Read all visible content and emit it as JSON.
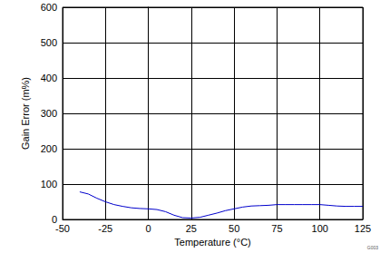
{
  "chart_data": {
    "type": "line",
    "xlabel": "Temperature (°C)",
    "ylabel": "Gain Error (m%)",
    "annotations": [
      "G003"
    ],
    "x": [
      -40,
      -35,
      -30,
      -25,
      -20,
      -15,
      -10,
      -5,
      0,
      5,
      10,
      15,
      20,
      25,
      30,
      35,
      40,
      45,
      50,
      55,
      60,
      65,
      70,
      75,
      80,
      85,
      90,
      95,
      100,
      105,
      110,
      115,
      120,
      125
    ],
    "values": [
      78,
      72,
      60,
      50,
      42,
      37,
      33,
      31,
      30,
      28,
      22,
      12,
      5,
      4,
      6,
      12,
      18,
      25,
      30,
      35,
      38,
      39,
      40,
      42,
      42,
      42,
      42,
      42,
      42,
      40,
      38,
      37,
      37,
      37
    ],
    "color": "#0000cc",
    "xlim": [
      -50,
      125
    ],
    "xticks": [
      -50,
      -25,
      0,
      25,
      50,
      75,
      100,
      125
    ],
    "ylim": [
      0,
      600
    ],
    "yticks": [
      0,
      100,
      200,
      300,
      400,
      500,
      600
    ],
    "grid": true
  }
}
